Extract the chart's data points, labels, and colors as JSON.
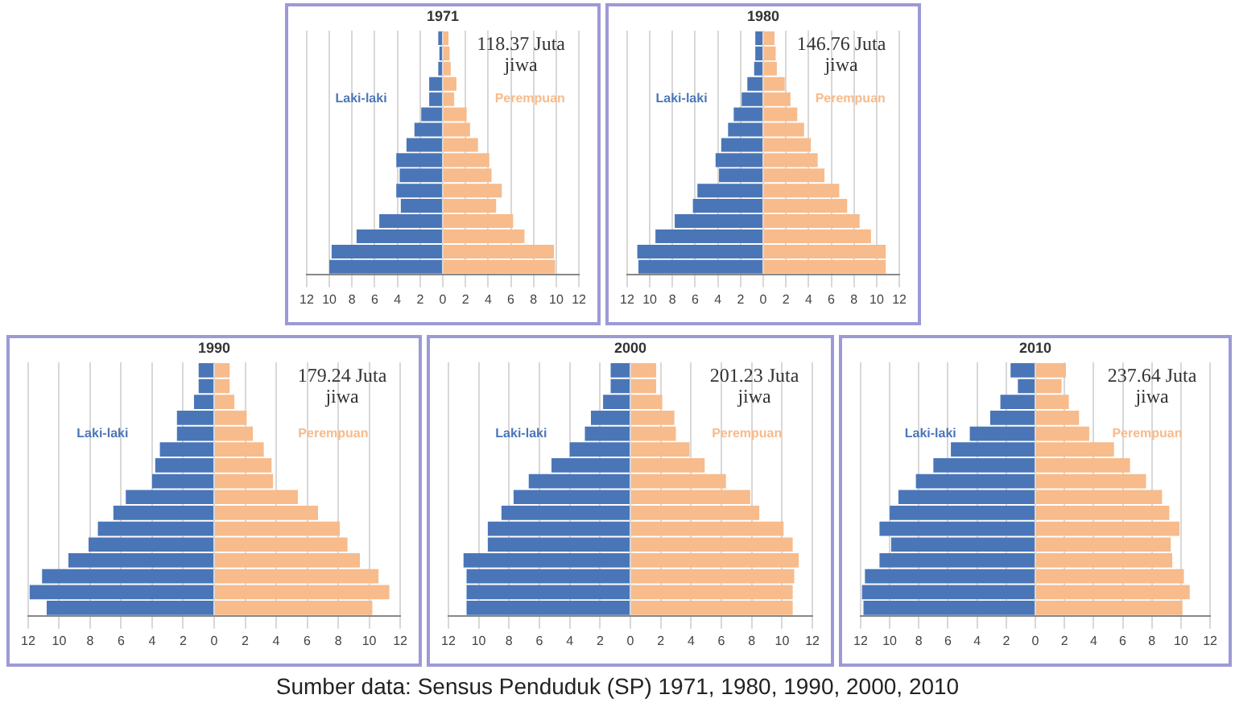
{
  "chart_data": [
    {
      "type": "bar",
      "title": "1971",
      "orientation": "horizontal",
      "stacked": true,
      "grid": "x",
      "categories": [
        null,
        null,
        null,
        null,
        null,
        null,
        null,
        null,
        null,
        null,
        null,
        null,
        null,
        null,
        null,
        null
      ],
      "xlim": [
        -12,
        12
      ],
      "xticks": [
        {
          "value": -12,
          "label": "12"
        },
        {
          "value": -10,
          "label": "10"
        },
        {
          "value": -8,
          "label": "8"
        },
        {
          "value": -6,
          "label": "6"
        },
        {
          "value": -4,
          "label": "4"
        },
        {
          "value": -2,
          "label": "2"
        },
        0,
        2,
        4,
        6,
        8,
        10,
        12
      ],
      "series": [
        {
          "name": "Laki-laki",
          "color": "#4a76b8",
          "values": [
            -0.4,
            -0.3,
            -0.4,
            -1.2,
            -1.2,
            -1.9,
            -2.5,
            -3.2,
            -4.1,
            -3.8,
            -4.1,
            -3.7,
            -5.6,
            -7.6,
            -9.8,
            -10.0
          ]
        },
        {
          "name": "Perempuan",
          "color": "#f7bb8c",
          "values": [
            0.5,
            0.6,
            0.7,
            1.2,
            1.0,
            2.1,
            2.4,
            3.1,
            4.1,
            4.3,
            5.2,
            4.7,
            6.2,
            7.2,
            9.8,
            9.9
          ]
        }
      ],
      "annotations": [
        "118.37 Juta jiwa"
      ]
    },
    {
      "type": "bar",
      "title": "1980",
      "orientation": "horizontal",
      "stacked": true,
      "grid": "x",
      "categories": [
        null,
        null,
        null,
        null,
        null,
        null,
        null,
        null,
        null,
        null,
        null,
        null,
        null,
        null,
        null,
        null
      ],
      "xlim": [
        -12,
        12
      ],
      "xticks": [
        {
          "value": -12,
          "label": "12"
        },
        {
          "value": -10,
          "label": "10"
        },
        {
          "value": -8,
          "label": "8"
        },
        {
          "value": -6,
          "label": "6"
        },
        {
          "value": -4,
          "label": "4"
        },
        {
          "value": -2,
          "label": "2"
        },
        0,
        2,
        4,
        6,
        8,
        10,
        12
      ],
      "series": [
        {
          "name": "Laki-laki",
          "color": "#4a76b8",
          "values": [
            -0.7,
            -0.7,
            -0.8,
            -1.4,
            -1.9,
            -2.6,
            -3.1,
            -3.7,
            -4.2,
            -3.9,
            -5.8,
            -6.2,
            -7.8,
            -9.5,
            -11.1,
            -11.0
          ]
        },
        {
          "name": "Perempuan",
          "color": "#f7bb8c",
          "values": [
            1.0,
            1.1,
            1.2,
            1.9,
            2.4,
            3.0,
            3.6,
            4.2,
            4.8,
            5.4,
            6.7,
            7.4,
            8.5,
            9.5,
            10.8,
            10.8
          ]
        }
      ],
      "annotations": [
        "146.76 Juta jiwa"
      ]
    },
    {
      "type": "bar",
      "title": "1990",
      "orientation": "horizontal",
      "stacked": true,
      "grid": "x",
      "categories": [
        null,
        null,
        null,
        null,
        null,
        null,
        null,
        null,
        null,
        null,
        null,
        null,
        null,
        null,
        null,
        null
      ],
      "xlim": [
        -12,
        12
      ],
      "xticks": [
        {
          "value": -12,
          "label": "12"
        },
        {
          "value": -10,
          "label": "10"
        },
        {
          "value": -8,
          "label": "8"
        },
        {
          "value": -6,
          "label": "6"
        },
        {
          "value": -4,
          "label": "4"
        },
        {
          "value": -2,
          "label": "2"
        },
        0,
        2,
        4,
        6,
        8,
        10,
        12
      ],
      "series": [
        {
          "name": "Laki-laki",
          "color": "#4a76b8",
          "values": [
            -1.0,
            -1.0,
            -1.3,
            -2.4,
            -2.4,
            -3.5,
            -3.8,
            -4.0,
            -5.7,
            -6.5,
            -7.5,
            -8.1,
            -9.4,
            -11.1,
            -11.9,
            -10.8
          ]
        },
        {
          "name": "Perempuan",
          "color": "#f7bb8c",
          "values": [
            1.0,
            1.0,
            1.3,
            2.1,
            2.5,
            3.2,
            3.7,
            3.8,
            5.4,
            6.7,
            8.1,
            8.6,
            9.4,
            10.6,
            11.3,
            10.2
          ]
        }
      ],
      "annotations": [
        "179.24 Juta jiwa"
      ]
    },
    {
      "type": "bar",
      "title": "2000",
      "orientation": "horizontal",
      "stacked": true,
      "grid": "x",
      "categories": [
        null,
        null,
        null,
        null,
        null,
        null,
        null,
        null,
        null,
        null,
        null,
        null,
        null,
        null,
        null,
        null
      ],
      "xlim": [
        -12,
        12
      ],
      "xticks": [
        {
          "value": -12,
          "label": "12"
        },
        {
          "value": -10,
          "label": "10"
        },
        {
          "value": -8,
          "label": "8"
        },
        {
          "value": -6,
          "label": "6"
        },
        {
          "value": -4,
          "label": "4"
        },
        {
          "value": -2,
          "label": "2"
        },
        0,
        2,
        4,
        6,
        8,
        10,
        12
      ],
      "series": [
        {
          "name": "Laki-laki",
          "color": "#4a76b8",
          "values": [
            -1.3,
            -1.3,
            -1.8,
            -2.6,
            -3.0,
            -4.0,
            -5.2,
            -6.7,
            -7.7,
            -8.5,
            -9.4,
            -9.4,
            -11.0,
            -10.8,
            -10.8,
            -10.8
          ]
        },
        {
          "name": "Perempuan",
          "color": "#f7bb8c",
          "values": [
            1.7,
            1.7,
            2.1,
            2.9,
            3.0,
            3.9,
            4.9,
            6.3,
            7.9,
            8.5,
            10.1,
            10.7,
            11.1,
            10.8,
            10.7,
            10.7
          ]
        }
      ],
      "annotations": [
        "201.23 Juta jiwa"
      ]
    },
    {
      "type": "bar",
      "title": "2010",
      "orientation": "horizontal",
      "stacked": true,
      "grid": "x",
      "categories": [
        null,
        null,
        null,
        null,
        null,
        null,
        null,
        null,
        null,
        null,
        null,
        null,
        null,
        null,
        null,
        null
      ],
      "xlim": [
        -12,
        12
      ],
      "xticks": [
        {
          "value": -12,
          "label": "12"
        },
        {
          "value": -10,
          "label": "10"
        },
        {
          "value": -8,
          "label": "8"
        },
        {
          "value": -6,
          "label": "6"
        },
        {
          "value": -4,
          "label": "4"
        },
        {
          "value": -2,
          "label": "2"
        },
        0,
        2,
        4,
        6,
        8,
        10,
        12
      ],
      "series": [
        {
          "name": "Laki-laki",
          "color": "#4a76b8",
          "values": [
            -1.7,
            -1.2,
            -2.4,
            -3.1,
            -4.5,
            -5.8,
            -7.0,
            -8.2,
            -9.4,
            -10.0,
            -10.7,
            -9.9,
            -10.7,
            -11.7,
            -11.9,
            -11.8
          ]
        },
        {
          "name": "Perempuan",
          "color": "#f7bb8c",
          "values": [
            2.1,
            1.8,
            2.3,
            3.0,
            3.7,
            5.4,
            6.5,
            7.6,
            8.7,
            9.2,
            9.9,
            9.3,
            9.4,
            10.2,
            10.6,
            10.1
          ]
        }
      ],
      "annotations": [
        "237.64 Juta jiwa",
        "Sumber data: Sensus Penduduk (SP) 1971, 1980, 1990, 2000, 2010"
      ]
    }
  ]
}
